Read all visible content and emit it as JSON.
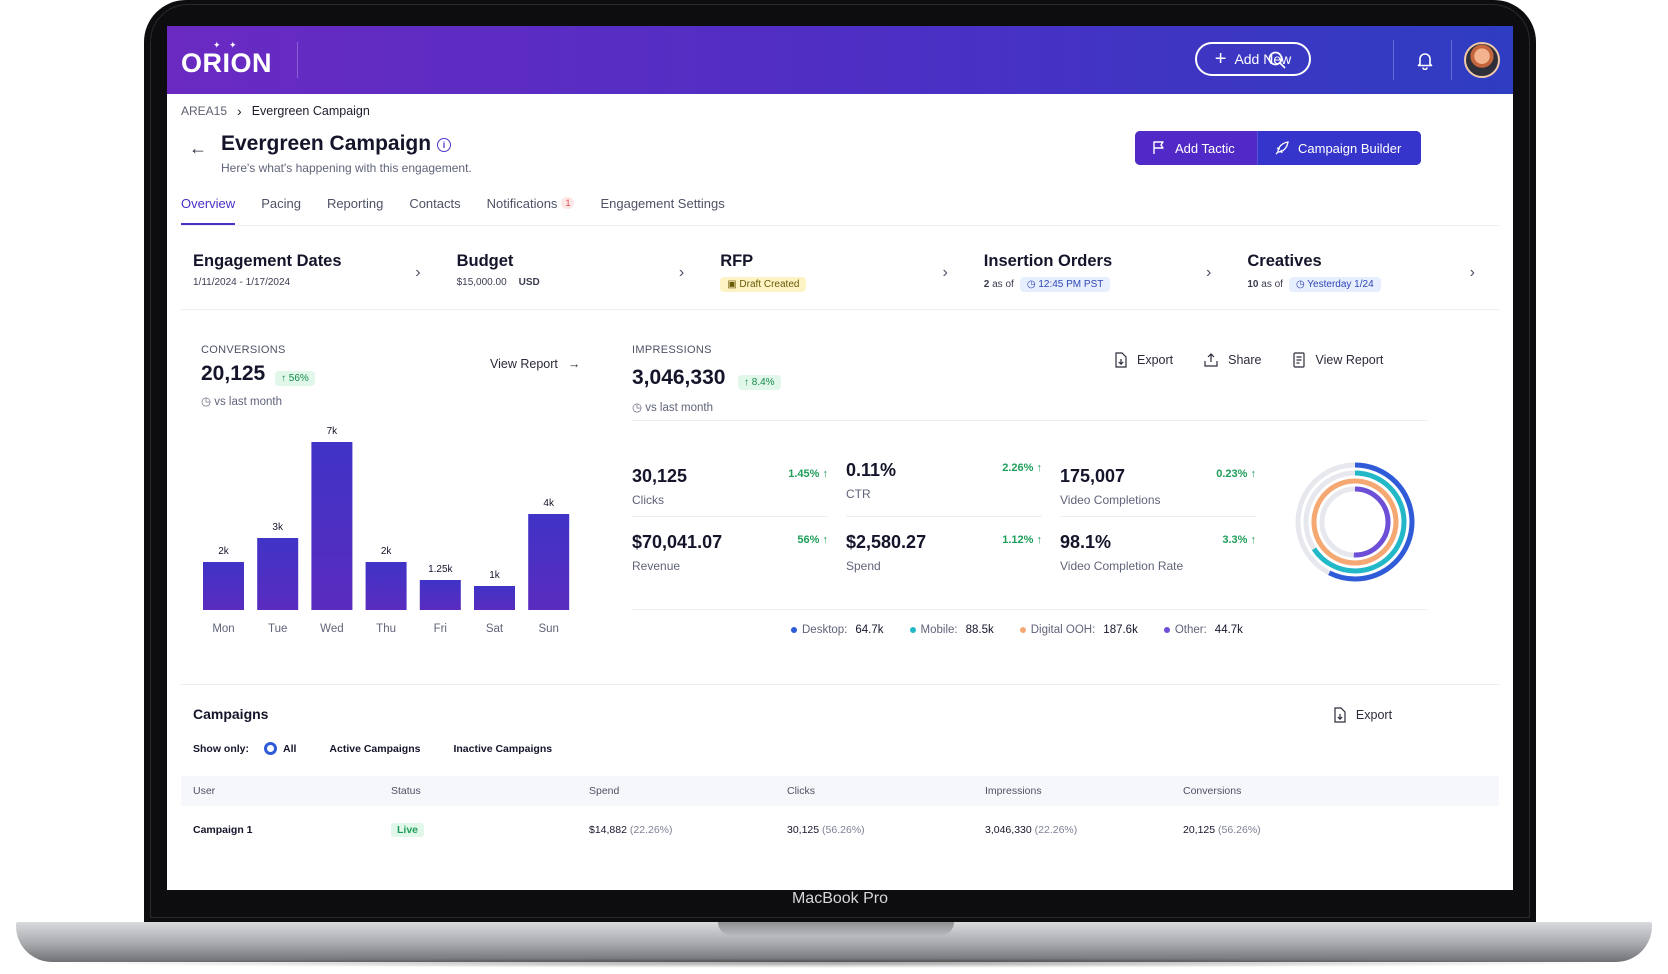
{
  "device_label": "MacBook Pro",
  "app": {
    "logo": "ORION",
    "add_new_label": "Add New",
    "icons": [
      "search-icon",
      "bell-icon",
      "avatar"
    ]
  },
  "breadcrumb": {
    "root": "AREA15",
    "current": "Evergreen Campaign"
  },
  "page": {
    "title": "Evergreen Campaign",
    "subtitle": "Here's what's happening with this engagement.",
    "actions": {
      "add_tactic": "Add Tactic",
      "campaign_builder": "Campaign Builder"
    }
  },
  "tabs": [
    {
      "label": "Overview",
      "active": true
    },
    {
      "label": "Pacing"
    },
    {
      "label": "Reporting"
    },
    {
      "label": "Contacts"
    },
    {
      "label": "Notifications",
      "badge": "1"
    },
    {
      "label": "Engagement Settings"
    }
  ],
  "summary": {
    "engagement_dates": {
      "title": "Engagement Dates",
      "value": "1/11/2024 - 1/17/2024"
    },
    "budget": {
      "title": "Budget",
      "value": "$15,000.00",
      "currency": "USD"
    },
    "rfp": {
      "title": "RFP",
      "status": "Draft Created"
    },
    "insertion_orders": {
      "title": "Insertion Orders",
      "count": "2",
      "as_of": "as of",
      "time": "12:45 PM PST"
    },
    "creatives": {
      "title": "Creatives",
      "count": "10",
      "as_of": "as of",
      "time": "Yesterday 1/24"
    }
  },
  "conversions": {
    "label": "CONVERSIONS",
    "value": "20,125",
    "change": "56%",
    "comparison": "vs last month",
    "view_report": "View Report"
  },
  "chart_data": {
    "type": "bar",
    "categories": [
      "Mon",
      "Tue",
      "Wed",
      "Thu",
      "Fri",
      "Sat",
      "Sun"
    ],
    "values": [
      2000,
      3000,
      7000,
      2000,
      1250,
      1000,
      4000
    ],
    "data_labels": [
      "2k",
      "3k",
      "7k",
      "2k",
      "1.25k",
      "1k",
      "4k"
    ],
    "bar_color": "#3b2fc0"
  },
  "impressions": {
    "label": "IMPRESSIONS",
    "value": "3,046,330",
    "change": "8.4%",
    "comparison": "vs last month",
    "actions": {
      "export": "Export",
      "share": "Share",
      "view_report": "View Report"
    }
  },
  "metrics": [
    {
      "value": "30,125",
      "label": "Clicks",
      "delta": "1.45% ↑"
    },
    {
      "value": "0.11%",
      "label": "CTR",
      "delta": "2.26% ↑"
    },
    {
      "value": "175,007",
      "label": "Video Completions",
      "delta": "0.23% ↑"
    },
    {
      "value": "$70,041.07",
      "label": "Revenue",
      "delta": "56% ↑"
    },
    {
      "value": "$2,580.27",
      "label": "Spend",
      "delta": "1.12% ↑"
    },
    {
      "value": "98.1%",
      "label": "Video Completion Rate",
      "delta": "3.3% ↑"
    }
  ],
  "device_split": {
    "items": [
      {
        "label": "Desktop:",
        "value": "64.7k",
        "raw": 64700,
        "color": "#2f5bd8"
      },
      {
        "label": "Mobile:",
        "value": "88.5k",
        "raw": 88500,
        "color": "#22b8c8"
      },
      {
        "label": "Digital OOH:",
        "value": "187.6k",
        "raw": 187600,
        "color": "#f5a872"
      },
      {
        "label": "Other:",
        "value": "44.7k",
        "raw": 44700,
        "color": "#6c4fd6"
      }
    ]
  },
  "campaigns": {
    "title": "Campaigns",
    "export_label": "Export",
    "filter": {
      "label": "Show only:",
      "options": [
        "All",
        "Active Campaigns",
        "Inactive Campaigns"
      ],
      "selected": "All"
    },
    "columns": [
      "User",
      "Status",
      "Spend",
      "Clicks",
      "Impressions",
      "Conversions"
    ],
    "rows": [
      {
        "user": "Campaign 1",
        "status": "Live",
        "spend": "$14,882",
        "spend_pct": "(22.26%)",
        "clicks": "30,125",
        "clicks_pct": "(56.26%)",
        "impressions": "3,046,330",
        "impressions_pct": "(22.26%)",
        "conversions": "20,125",
        "conversions_pct": "(56.26%)"
      }
    ]
  }
}
